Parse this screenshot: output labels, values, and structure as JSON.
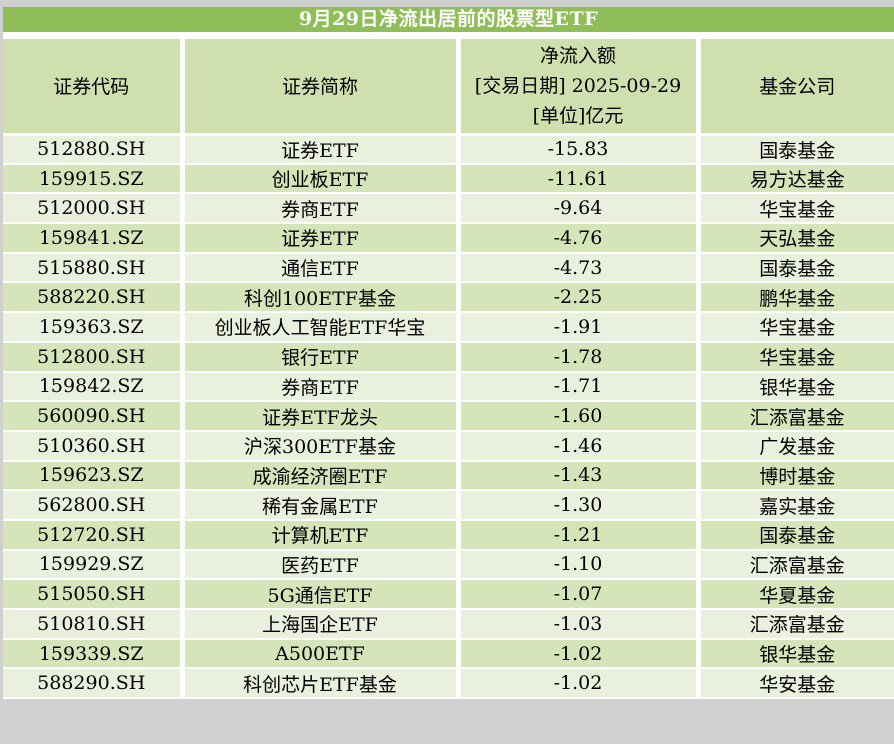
{
  "title": "9月29日净流出居前的股票型ETF",
  "header": {
    "code": "证券代码",
    "name": "证券简称",
    "flow_lines": [
      "净流入额",
      "[交易日期] 2025-09-29",
      "[单位]亿元"
    ],
    "company": "基金公司"
  },
  "chart_data": {
    "type": "table",
    "title": "9月29日净流出居前的股票型ETF",
    "columns": [
      "证券代码",
      "证券简称",
      "净流入额 [交易日期] 2025-09-29 [单位]亿元",
      "基金公司"
    ],
    "rows": [
      {
        "code": "512880.SH",
        "name": "证券ETF",
        "flow": "-15.83",
        "company": "国泰基金"
      },
      {
        "code": "159915.SZ",
        "name": "创业板ETF",
        "flow": "-11.61",
        "company": "易方达基金"
      },
      {
        "code": "512000.SH",
        "name": "券商ETF",
        "flow": "-9.64",
        "company": "华宝基金"
      },
      {
        "code": "159841.SZ",
        "name": "证券ETF",
        "flow": "-4.76",
        "company": "天弘基金"
      },
      {
        "code": "515880.SH",
        "name": "通信ETF",
        "flow": "-4.73",
        "company": "国泰基金"
      },
      {
        "code": "588220.SH",
        "name": "科创100ETF基金",
        "flow": "-2.25",
        "company": "鹏华基金"
      },
      {
        "code": "159363.SZ",
        "name": "创业板人工智能ETF华宝",
        "flow": "-1.91",
        "company": "华宝基金"
      },
      {
        "code": "512800.SH",
        "name": "银行ETF",
        "flow": "-1.78",
        "company": "华宝基金"
      },
      {
        "code": "159842.SZ",
        "name": "券商ETF",
        "flow": "-1.71",
        "company": "银华基金"
      },
      {
        "code": "560090.SH",
        "name": "证券ETF龙头",
        "flow": "-1.60",
        "company": "汇添富基金"
      },
      {
        "code": "510360.SH",
        "name": "沪深300ETF基金",
        "flow": "-1.46",
        "company": "广发基金"
      },
      {
        "code": "159623.SZ",
        "name": "成渝经济圈ETF",
        "flow": "-1.43",
        "company": "博时基金"
      },
      {
        "code": "562800.SH",
        "name": "稀有金属ETF",
        "flow": "-1.30",
        "company": "嘉实基金"
      },
      {
        "code": "512720.SH",
        "name": "计算机ETF",
        "flow": "-1.21",
        "company": "国泰基金"
      },
      {
        "code": "159929.SZ",
        "name": "医药ETF",
        "flow": "-1.10",
        "company": "汇添富基金"
      },
      {
        "code": "515050.SH",
        "name": "5G通信ETF",
        "flow": "-1.07",
        "company": "华夏基金"
      },
      {
        "code": "510810.SH",
        "name": "上海国企ETF",
        "flow": "-1.03",
        "company": "汇添富基金"
      },
      {
        "code": "159339.SZ",
        "name": "A500ETF",
        "flow": "-1.02",
        "company": "银华基金"
      },
      {
        "code": "588290.SH",
        "name": "科创芯片ETF基金",
        "flow": "-1.02",
        "company": "华安基金"
      }
    ]
  },
  "colors": {
    "title_bg": "#8fbd58",
    "title_text": "#ffffff",
    "header_bg": "#cfe0ae",
    "row_light": "#e9f1de",
    "row_dark": "#d6e4ba",
    "grid_line": "#ffffff",
    "outer_bg": "#d0d0d0",
    "body_text": "#000000"
  }
}
